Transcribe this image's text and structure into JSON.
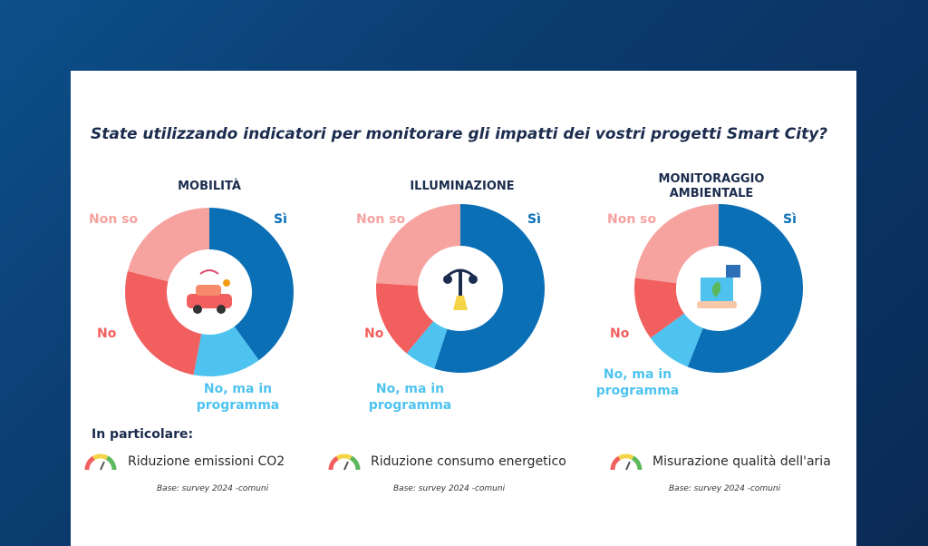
{
  "header": {
    "title": "State utilizzando indicatori per monitorare gli impatti dei vostri progetti Smart City?"
  },
  "chart_data": [
    {
      "type": "pie",
      "donut": true,
      "title": "MOBILITÀ",
      "categories": [
        "Sì",
        "No, ma in programma",
        "No",
        "Non so"
      ],
      "values": [
        40,
        13,
        26,
        21
      ],
      "colors": [
        "#0b6fb6",
        "#4ec3ef",
        "#f25f5f",
        "#f6a3a0"
      ]
    },
    {
      "type": "pie",
      "donut": true,
      "title": "ILLUMINAZIONE",
      "categories": [
        "Sì",
        "No, ma in programma",
        "No",
        "Non so"
      ],
      "values": [
        55,
        6,
        15,
        24
      ],
      "colors": [
        "#0b6fb6",
        "#4ec3ef",
        "#f25f5f",
        "#f6a3a0"
      ]
    },
    {
      "type": "pie",
      "donut": true,
      "title": "MONITORAGGIO AMBIENTALE",
      "categories": [
        "Sì",
        "No, ma in programma",
        "No",
        "Non so"
      ],
      "values": [
        56,
        9,
        12,
        23
      ],
      "colors": [
        "#0b6fb6",
        "#4ec3ef",
        "#f25f5f",
        "#f6a3a0"
      ]
    }
  ],
  "details": {
    "heading": "In particolare:",
    "items": [
      {
        "label": "Riduzione emissioni CO2",
        "note": "Base: survey 2024 -comuni"
      },
      {
        "label": "Riduzione consumo energetico",
        "note": "Base: survey 2024 -comuni"
      },
      {
        "label": "Misurazione qualità dell'aria",
        "note": "Base: survey 2024 -comuni"
      }
    ]
  }
}
